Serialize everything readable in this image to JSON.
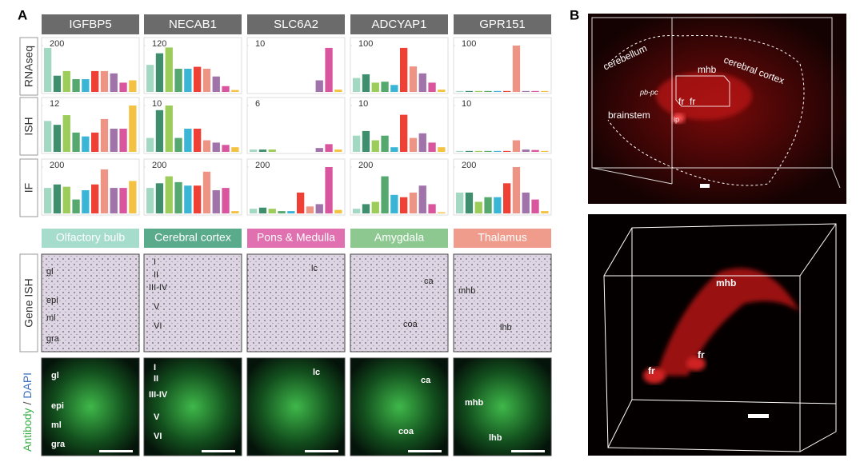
{
  "figure": {
    "panel_a": "A",
    "panel_b": "B",
    "genes": [
      "IGFBP5",
      "NECAB1",
      "SLC6A2",
      "ADCYAP1",
      "GPR151"
    ],
    "row_labels": [
      "RNAseq",
      "ISH",
      "IF",
      "Gene ISH"
    ],
    "antibody_label": "Antibody",
    "slash": "/",
    "dapi_label": "DAPI",
    "regions": [
      "Olfactory bulb",
      "Cerebral cortex",
      "Pons & Medulla",
      "Amygdala",
      "Thalamus"
    ],
    "region_colors": [
      "#a6dccc",
      "#5aaa8c",
      "#e070b0",
      "#8cc890",
      "#f09c8c"
    ],
    "ish_annotations": [
      [
        "gl",
        "epi",
        "ml",
        "gra"
      ],
      [
        "I",
        "II",
        "III-IV",
        "V",
        "VI"
      ],
      [
        "lc"
      ],
      [
        "ca",
        "coa"
      ],
      [
        "mhb",
        "lhb"
      ]
    ],
    "if_annotations": [
      [
        "gl",
        "epi",
        "ml",
        "gra"
      ],
      [
        "I",
        "II",
        "III-IV",
        "V",
        "VI"
      ],
      [
        "lc"
      ],
      [
        "ca",
        "coa"
      ],
      [
        "mhb",
        "lhb"
      ]
    ],
    "b_top_labels": [
      "cerebellum",
      "cerebral cortex",
      "mhb",
      "pb-pc",
      "fr",
      "fr",
      "ip",
      "brainstem"
    ],
    "b_bottom_labels": [
      "mhb",
      "fr",
      "fr"
    ]
  },
  "chart_data": [
    {
      "type": "bar",
      "ylim": [
        0,
        200
      ],
      "yticks": [
        200
      ],
      "values": [
        190,
        70,
        90,
        55,
        55,
        90,
        90,
        80,
        40,
        50
      ],
      "colors": [
        "#a3d9c3",
        "#3f8f6f",
        "#9ccc5a",
        "#55a86e",
        "#3bb5d6",
        "#ee4035",
        "#ee9484",
        "#a173ab",
        "#d9559e",
        "#f4c242"
      ]
    },
    {
      "type": "bar",
      "ylim": [
        0,
        120
      ],
      "yticks": [
        120
      ],
      "values": [
        70,
        100,
        115,
        60,
        60,
        65,
        60,
        40,
        15,
        5
      ],
      "colors": [
        "#a3d9c3",
        "#3f8f6f",
        "#9ccc5a",
        "#55a86e",
        "#3bb5d6",
        "#ee4035",
        "#ee9484",
        "#a173ab",
        "#d9559e",
        "#f4c242"
      ]
    },
    {
      "type": "bar",
      "ylim": [
        0,
        10
      ],
      "yticks": [
        10
      ],
      "values": [
        0,
        0,
        0,
        0,
        0,
        0,
        0,
        2.5,
        9.5,
        0.5
      ],
      "colors": [
        "#a3d9c3",
        "#3f8f6f",
        "#9ccc5a",
        "#55a86e",
        "#3bb5d6",
        "#ee4035",
        "#ee9484",
        "#a173ab",
        "#d9559e",
        "#f4c242"
      ]
    },
    {
      "type": "bar",
      "ylim": [
        0,
        100
      ],
      "yticks": [
        100
      ],
      "values": [
        30,
        38,
        20,
        22,
        15,
        95,
        55,
        40,
        20,
        5
      ],
      "colors": [
        "#a3d9c3",
        "#3f8f6f",
        "#9ccc5a",
        "#55a86e",
        "#3bb5d6",
        "#ee4035",
        "#ee9484",
        "#a173ab",
        "#d9559e",
        "#f4c242"
      ]
    },
    {
      "type": "bar",
      "ylim": [
        0,
        100
      ],
      "yticks": [
        100
      ],
      "values": [
        2,
        2,
        2,
        2,
        2,
        2,
        100,
        2,
        2,
        2
      ],
      "colors": [
        "#a3d9c3",
        "#3f8f6f",
        "#9ccc5a",
        "#55a86e",
        "#3bb5d6",
        "#ee4035",
        "#ee9484",
        "#a173ab",
        "#d9559e",
        "#f4c242"
      ]
    },
    {
      "type": "bar",
      "ylim": [
        0,
        12
      ],
      "yticks": [
        12
      ],
      "values": [
        8,
        7,
        9.5,
        5,
        4,
        5,
        8.5,
        6,
        6,
        12
      ],
      "colors": [
        "#a3d9c3",
        "#3f8f6f",
        "#9ccc5a",
        "#55a86e",
        "#3bb5d6",
        "#ee4035",
        "#ee9484",
        "#a173ab",
        "#d9559e",
        "#f4c242"
      ]
    },
    {
      "type": "bar",
      "ylim": [
        0,
        10
      ],
      "yticks": [
        10
      ],
      "values": [
        3,
        9,
        10,
        3,
        5,
        5,
        2.5,
        2,
        1.5,
        1
      ],
      "colors": [
        "#a3d9c3",
        "#3f8f6f",
        "#9ccc5a",
        "#55a86e",
        "#3bb5d6",
        "#ee4035",
        "#ee9484",
        "#a173ab",
        "#d9559e",
        "#f4c242"
      ]
    },
    {
      "type": "bar",
      "ylim": [
        0,
        6
      ],
      "yticks": [
        6
      ],
      "values": [
        0.3,
        0.3,
        0.3,
        0,
        0,
        0,
        0,
        0.5,
        1,
        0.3
      ],
      "colors": [
        "#a3d9c3",
        "#3f8f6f",
        "#9ccc5a",
        "#55a86e",
        "#3bb5d6",
        "#ee4035",
        "#ee9484",
        "#a173ab",
        "#d9559e",
        "#f4c242"
      ]
    },
    {
      "type": "bar",
      "ylim": [
        0,
        10
      ],
      "yticks": [
        10
      ],
      "values": [
        3.5,
        4.5,
        2.5,
        3.5,
        1,
        8,
        3,
        4,
        2,
        1
      ],
      "colors": [
        "#a3d9c3",
        "#3f8f6f",
        "#9ccc5a",
        "#55a86e",
        "#3bb5d6",
        "#ee4035",
        "#ee9484",
        "#a173ab",
        "#d9559e",
        "#f4c242"
      ]
    },
    {
      "type": "bar",
      "ylim": [
        0,
        10
      ],
      "yticks": [
        10
      ],
      "values": [
        0.2,
        0.2,
        0.2,
        0.2,
        0.2,
        0.2,
        2.5,
        0.5,
        0.4,
        0.2
      ],
      "colors": [
        "#a3d9c3",
        "#3f8f6f",
        "#9ccc5a",
        "#55a86e",
        "#3bb5d6",
        "#ee4035",
        "#ee9484",
        "#a173ab",
        "#d9559e",
        "#f4c242"
      ]
    },
    {
      "type": "bar",
      "ylim": [
        0,
        200
      ],
      "yticks": [
        200
      ],
      "values": [
        110,
        125,
        115,
        60,
        100,
        125,
        190,
        110,
        110,
        140
      ],
      "colors": [
        "#a3d9c3",
        "#3f8f6f",
        "#9ccc5a",
        "#55a86e",
        "#3bb5d6",
        "#ee4035",
        "#ee9484",
        "#a173ab",
        "#d9559e",
        "#f4c242"
      ]
    },
    {
      "type": "bar",
      "ylim": [
        0,
        200
      ],
      "yticks": [
        200
      ],
      "values": [
        110,
        130,
        160,
        135,
        120,
        120,
        180,
        100,
        110,
        10
      ],
      "colors": [
        "#a3d9c3",
        "#3f8f6f",
        "#9ccc5a",
        "#55a86e",
        "#3bb5d6",
        "#ee4035",
        "#ee9484",
        "#a173ab",
        "#d9559e",
        "#f4c242"
      ]
    },
    {
      "type": "bar",
      "ylim": [
        0,
        200
      ],
      "yticks": [
        200
      ],
      "values": [
        20,
        25,
        20,
        10,
        10,
        90,
        30,
        40,
        200,
        15
      ],
      "colors": [
        "#a3d9c3",
        "#3f8f6f",
        "#9ccc5a",
        "#55a86e",
        "#3bb5d6",
        "#ee4035",
        "#ee9484",
        "#a173ab",
        "#d9559e",
        "#f4c242"
      ]
    },
    {
      "type": "bar",
      "ylim": [
        0,
        200
      ],
      "yticks": [
        200
      ],
      "values": [
        20,
        40,
        50,
        160,
        80,
        70,
        90,
        120,
        40,
        5
      ],
      "colors": [
        "#a3d9c3",
        "#3f8f6f",
        "#9ccc5a",
        "#55a86e",
        "#3bb5d6",
        "#ee4035",
        "#ee9484",
        "#a173ab",
        "#d9559e",
        "#f4c242"
      ]
    },
    {
      "type": "bar",
      "ylim": [
        0,
        200
      ],
      "yticks": [
        200
      ],
      "values": [
        90,
        90,
        50,
        70,
        70,
        130,
        200,
        90,
        60,
        10
      ],
      "colors": [
        "#a3d9c3",
        "#3f8f6f",
        "#9ccc5a",
        "#55a86e",
        "#3bb5d6",
        "#ee4035",
        "#ee9484",
        "#a173ab",
        "#d9559e",
        "#f4c242"
      ]
    }
  ]
}
